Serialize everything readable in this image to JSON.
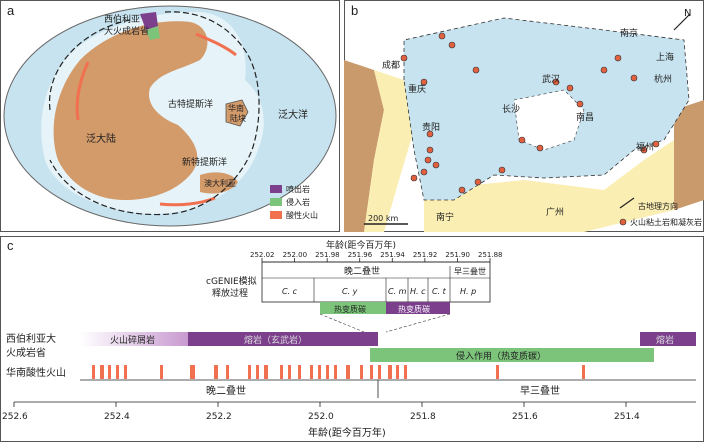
{
  "panel_a": {
    "label": "a",
    "siberia_label_1": "西伯利亚",
    "siberia_label_2": "大火成岩省",
    "pangea": "泛大陆",
    "paleotethys": "古特提斯洋",
    "neotethys": "新特提斯洋",
    "panthalassa": "泛大洋",
    "south_china": "华南",
    "south_china_2": "陆块",
    "australia": "澳大利亚",
    "legend": [
      {
        "label": "喷出岩",
        "color": "#7b3f8c"
      },
      {
        "label": "侵入岩",
        "color": "#7cc47a"
      },
      {
        "label": "酸性火山",
        "color": "#f07050"
      }
    ]
  },
  "panel_b": {
    "label": "b",
    "cities": [
      "成都",
      "重庆",
      "贵阳",
      "南宁",
      "广州",
      "长沙",
      "南昌",
      "武汉",
      "南京",
      "上海",
      "杭州",
      "福州"
    ],
    "north": "N",
    "scale": "200 km",
    "legend": [
      {
        "label": "古地理方向"
      },
      {
        "label": "火山粘土岩和凝灰岩"
      }
    ]
  },
  "panel_c": {
    "label": "c",
    "top_axis_title": "年龄(距今百万年)",
    "top_ticks": [
      "252.02",
      "252.00",
      "251.98",
      "251.96",
      "251.94",
      "251.92",
      "251.90",
      "251.88"
    ],
    "egenie_1": "cGENIE模拟",
    "egenie_2": "释放过程",
    "late_permian": "晚二叠世",
    "early_triassic_small": "早三叠世",
    "stages": [
      "C. c",
      "C. y",
      "C. m",
      "H. c",
      "C. t",
      "H. p"
    ],
    "thermal_1": "热变质碳",
    "thermal_2": "热变质碳",
    "siberia_row_1": "西伯利亚大",
    "siberia_row_2": "火成岩省",
    "pyroclastic": "火山碎屑岩",
    "lava_mid": "熔岩（玄武岩）",
    "lava_end": "熔岩",
    "intrusion": "侵入作用（热变质碳）",
    "sc_volcano": "华南酸性火山",
    "period_late": "晚二叠世",
    "period_early": "早三叠世",
    "bottom_ticks": [
      "252.6",
      "252.4",
      "252.2",
      "252.0",
      "251.8",
      "251.6",
      "251.4"
    ],
    "bottom_axis_title": "年龄(距今百万年)"
  },
  "colors": {
    "ocean": "#c7e3ef",
    "shelf": "#e6f3f8",
    "land": "#d39a6a",
    "basin_yellow": "#fbeeb2",
    "brown": "#c99a6b",
    "purple": "#7b3f8c",
    "green": "#7cc47a",
    "orange": "#f07050"
  }
}
